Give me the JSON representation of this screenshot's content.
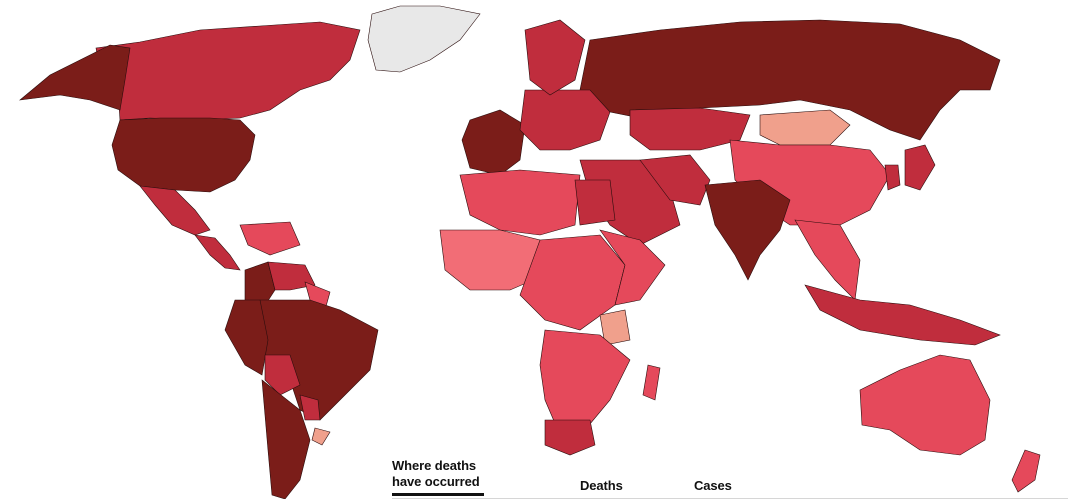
{
  "tabs": {
    "where": "Where deaths\nhave occurred",
    "deaths": "Deaths",
    "cases": "Cases"
  },
  "colors": {
    "background": "#ffffff",
    "no_data": "#e8e8e8",
    "level_1": "#f0a08c",
    "level_2": "#f26d76",
    "level_3": "#e5495b",
    "level_4": "#c02d3d",
    "level_5": "#7b1d19",
    "border": "#2a0d0d"
  },
  "map": {
    "title": "",
    "regions": [
      {
        "name": "Canada",
        "level": "level_4"
      },
      {
        "name": "Alaska",
        "level": "level_5"
      },
      {
        "name": "United States",
        "level": "level_5"
      },
      {
        "name": "Greenland",
        "level": "no_data"
      },
      {
        "name": "Mexico",
        "level": "level_4"
      },
      {
        "name": "Central America",
        "level": "level_4"
      },
      {
        "name": "Caribbean",
        "level": "level_3"
      },
      {
        "name": "Colombia",
        "level": "level_5"
      },
      {
        "name": "Venezuela",
        "level": "level_4"
      },
      {
        "name": "Guianas",
        "level": "level_3"
      },
      {
        "name": "Brazil",
        "level": "level_5"
      },
      {
        "name": "Peru",
        "level": "level_5"
      },
      {
        "name": "Bolivia",
        "level": "level_4"
      },
      {
        "name": "Paraguay",
        "level": "level_4"
      },
      {
        "name": "Argentina",
        "level": "level_5"
      },
      {
        "name": "Uruguay",
        "level": "level_1"
      },
      {
        "name": "Russia",
        "level": "level_5"
      },
      {
        "name": "Europe West",
        "level": "level_5"
      },
      {
        "name": "Europe East",
        "level": "level_4"
      },
      {
        "name": "Scandinavia",
        "level": "level_4"
      },
      {
        "name": "Kazakhstan",
        "level": "level_4"
      },
      {
        "name": "Mongolia",
        "level": "level_1"
      },
      {
        "name": "China",
        "level": "level_3"
      },
      {
        "name": "Japan",
        "level": "level_4"
      },
      {
        "name": "Korea",
        "level": "level_4"
      },
      {
        "name": "Middle East",
        "level": "level_4"
      },
      {
        "name": "Iran",
        "level": "level_4"
      },
      {
        "name": "India",
        "level": "level_5"
      },
      {
        "name": "Southeast Asia",
        "level": "level_3"
      },
      {
        "name": "Indonesia",
        "level": "level_4"
      },
      {
        "name": "Australia",
        "level": "level_3"
      },
      {
        "name": "New Zealand",
        "level": "level_3"
      },
      {
        "name": "North Africa",
        "level": "level_3"
      },
      {
        "name": "Egypt",
        "level": "level_4"
      },
      {
        "name": "West Africa",
        "level": "level_2"
      },
      {
        "name": "Central Africa",
        "level": "level_3"
      },
      {
        "name": "East Africa",
        "level": "level_3"
      },
      {
        "name": "Tanzania",
        "level": "level_1"
      },
      {
        "name": "Southern Africa",
        "level": "level_3"
      },
      {
        "name": "South Africa",
        "level": "level_4"
      },
      {
        "name": "Madagascar",
        "level": "level_3"
      }
    ]
  }
}
